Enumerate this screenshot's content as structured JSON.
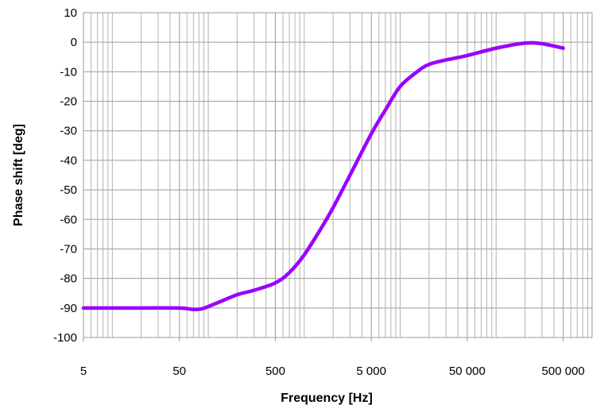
{
  "chart_data": {
    "type": "line",
    "title": "",
    "xlabel": "Frequency [Hz]",
    "ylabel": "Phase shift [deg]",
    "xscale": "log",
    "xlim": [
      5,
      1000000
    ],
    "ylim": [
      -100,
      10
    ],
    "grid": true,
    "legend": "none",
    "x_ticks": [
      {
        "value": 5,
        "label": "5"
      },
      {
        "value": 50,
        "label": "50"
      },
      {
        "value": 500,
        "label": "500"
      },
      {
        "value": 5000,
        "label": "5 000"
      },
      {
        "value": 50000,
        "label": "50 000"
      },
      {
        "value": 500000,
        "label": "500 000"
      }
    ],
    "y_ticks": [
      {
        "value": 10,
        "label": "10"
      },
      {
        "value": 0,
        "label": "0"
      },
      {
        "value": -10,
        "label": "-10"
      },
      {
        "value": -20,
        "label": "-20"
      },
      {
        "value": -30,
        "label": "-30"
      },
      {
        "value": -40,
        "label": "-40"
      },
      {
        "value": -50,
        "label": "-50"
      },
      {
        "value": -60,
        "label": "-60"
      },
      {
        "value": -70,
        "label": "-70"
      },
      {
        "value": -80,
        "label": "-80"
      },
      {
        "value": -90,
        "label": "-90"
      },
      {
        "value": -100,
        "label": "-100"
      }
    ],
    "series": [
      {
        "color": "#9900ff",
        "x": [
          5,
          10,
          20,
          50,
          70,
          85,
          100,
          130,
          200,
          300,
          500,
          700,
          1000,
          1500,
          2000,
          3000,
          5000,
          7000,
          10000,
          15000,
          20000,
          30000,
          50000,
          100000,
          200000,
          300000,
          500000
        ],
        "y": [
          -90,
          -90,
          -90,
          -90,
          -90.5,
          -90.3,
          -89.5,
          -88,
          -85.5,
          -84,
          -81.5,
          -78,
          -72,
          -63,
          -56,
          -45,
          -31,
          -23,
          -15,
          -10,
          -7.5,
          -6,
          -4.5,
          -2,
          -0.3,
          -0.5,
          -2
        ]
      }
    ]
  }
}
